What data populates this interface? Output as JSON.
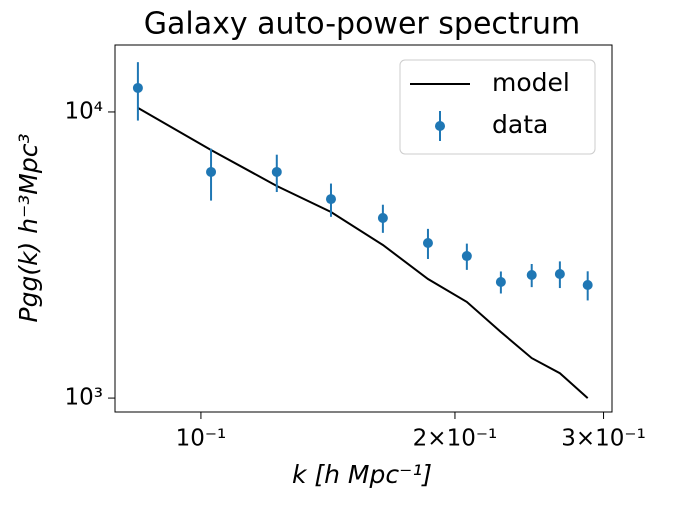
{
  "chart_data": {
    "type": "line",
    "title": "Galaxy auto-power spectrum",
    "xlabel": "k [h Mpc⁻¹]",
    "ylabel": "Pgg(k) h⁻³Mpc³",
    "x": [
      0.0842,
      0.1028,
      0.123,
      0.1426,
      0.1643,
      0.1858,
      0.2066,
      0.2267,
      0.2466,
      0.2663,
      0.2873
    ],
    "series": [
      {
        "name": "model",
        "color": "#000000",
        "kind": "line",
        "values": [
          10330,
          7360,
          5510,
          4470,
          3428,
          2607,
          2168,
          1702,
          1380,
          1222,
          1000
        ]
      },
      {
        "name": "data",
        "color": "#1f77b4",
        "kind": "errorbar",
        "values": [
          12130,
          6170,
          6170,
          4960,
          4260,
          3483,
          3136,
          2545,
          2692,
          2714,
          2484
        ],
        "errors": [
          2800,
          1270,
          920,
          660,
          480,
          420,
          330,
          225,
          250,
          290,
          290
        ]
      }
    ],
    "xscale": "log",
    "yscale": "log",
    "xlim": [
      0.0791,
      0.307
    ],
    "ylim": [
      894,
      17140
    ],
    "xticks": [
      {
        "value": 0.1,
        "label": "10⁻¹"
      },
      {
        "value": 0.2,
        "label": "2×10⁻¹"
      },
      {
        "value": 0.3,
        "label": "3×10⁻¹"
      }
    ],
    "yticks": [
      {
        "value": 1000,
        "label": "10³"
      },
      {
        "value": 10000,
        "label": "10⁴"
      }
    ],
    "legend": "upper right"
  }
}
